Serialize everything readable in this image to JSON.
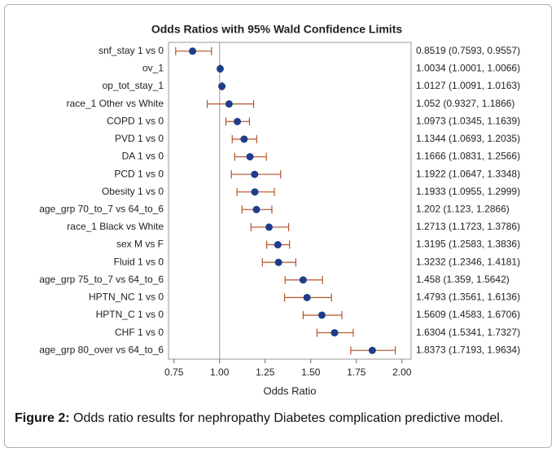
{
  "chart_data": {
    "type": "forest",
    "title": "Odds Ratios with 95% Wald Confidence Limits",
    "x_label": "Odds Ratio",
    "categories": [
      "snf_stay 1 vs 0",
      "ov_1",
      "op_tot_stay_1",
      "race_1 Other vs White",
      "COPD 1 vs 0",
      "PVD 1 vs 0",
      "DA 1 vs 0",
      "PCD 1 vs 0",
      "Obesity 1 vs 0",
      "age_grp 70_to_7 vs 64_to_6",
      "race_1 Black vs White",
      "sex M vs F",
      "Fluid 1 vs 0",
      "age_grp 75_to_7 vs 64_to_6",
      "HPTN_NC 1 vs 0",
      "HPTN_C 1 vs 0",
      "CHF 1 vs 0",
      "age_grp 80_over vs 64_to_6"
    ],
    "values": [
      0.8519,
      1.0034,
      1.0127,
      1.052,
      1.0973,
      1.1344,
      1.1666,
      1.1922,
      1.1933,
      1.202,
      1.2713,
      1.3195,
      1.3232,
      1.458,
      1.4793,
      1.5609,
      1.6304,
      1.8373
    ],
    "lower": [
      0.7593,
      1.0001,
      1.0091,
      0.9327,
      1.0345,
      1.0693,
      1.0831,
      1.0647,
      1.0955,
      1.123,
      1.1723,
      1.2583,
      1.2346,
      1.359,
      1.3561,
      1.4583,
      1.5341,
      1.7193
    ],
    "upper": [
      0.9557,
      1.0066,
      1.0163,
      1.1866,
      1.1639,
      1.2035,
      1.2566,
      1.3348,
      1.2999,
      1.2866,
      1.3786,
      1.3836,
      1.4181,
      1.5642,
      1.6136,
      1.6706,
      1.7327,
      1.9634
    ],
    "value_labels": [
      "0.8519 (0.7593, 0.9557)",
      "1.0034 (1.0001, 1.0066)",
      "1.0127 (1.0091, 1.0163)",
      "1.052 (0.9327, 1.1866)",
      "1.0973 (1.0345, 1.1639)",
      "1.1344 (1.0693, 1.2035)",
      "1.1666 (1.0831, 1.2566)",
      "1.1922 (1.0647, 1.3348)",
      "1.1933 (1.0955, 1.2999)",
      "1.202 (1.123, 1.2866)",
      "1.2713 (1.1723, 1.3786)",
      "1.3195 (1.2583, 1.3836)",
      "1.3232 (1.2346, 1.4181)",
      "1.458 (1.359, 1.5642)",
      "1.4793 (1.3561, 1.6136)",
      "1.5609 (1.4583, 1.6706)",
      "1.6304 (1.5341, 1.7327)",
      "1.8373 (1.7193, 1.9634)"
    ],
    "xlim": [
      0.72,
      2.05
    ],
    "xticks": [
      0.75,
      {
        "value": 1,
        "label": "1.00"
      },
      1.25,
      {
        "value": 1.5,
        "label": "1.50"
      },
      1.75,
      {
        "value": 2,
        "label": "2.00"
      }
    ],
    "reference_line": 1,
    "point_color": "#1f3d8c",
    "bar_color": "#b5532a"
  },
  "caption": {
    "label": "Figure 2:",
    "text": "Odds ratio results for nephropathy Diabetes complication predictive model."
  }
}
